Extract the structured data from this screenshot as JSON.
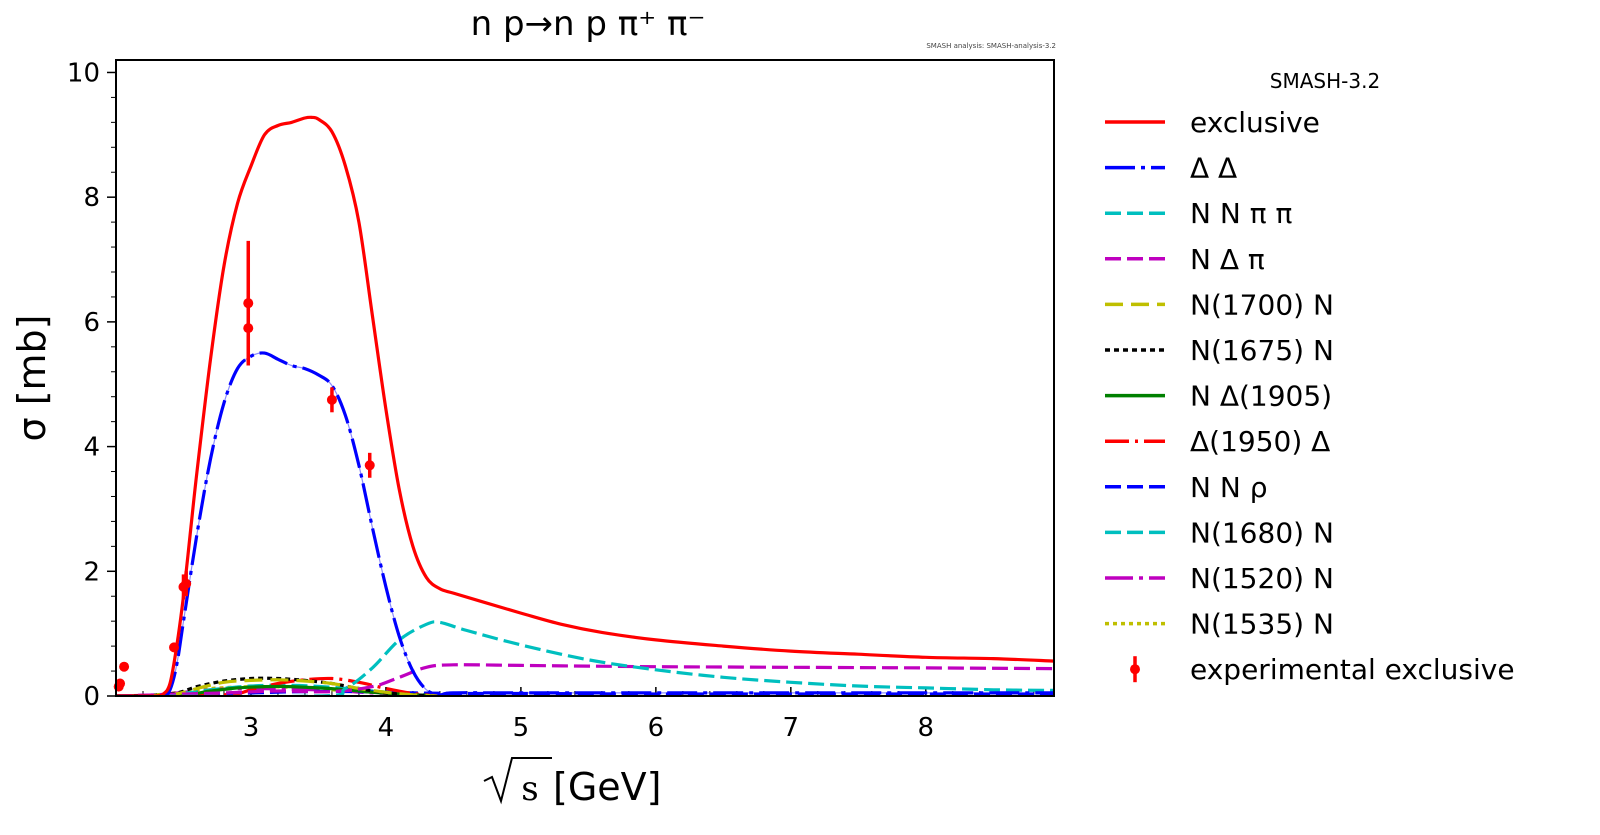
{
  "chart_data": {
    "type": "line",
    "title": "n p→n p π⁺ π⁻",
    "note": "SMASH analysis: SMASH-analysis-3.2",
    "xlabel": "[GeV]",
    "xlabel_symbol": "s",
    "ylabel": "σ [mb]",
    "xlim": [
      2.0,
      8.95
    ],
    "ylim": [
      0,
      10.2
    ],
    "x_ticks": [
      3,
      4,
      5,
      6,
      7,
      8
    ],
    "y_ticks": [
      0,
      2,
      4,
      6,
      8,
      10
    ],
    "legend_title": "SMASH-3.2",
    "legend_position": "outside-right",
    "series": [
      {
        "name": "exclusive",
        "color": "#ff0000",
        "dash": "",
        "width": 3.2,
        "x": [
          2.0,
          2.1,
          2.2,
          2.3,
          2.35,
          2.4,
          2.45,
          2.5,
          2.55,
          2.6,
          2.7,
          2.8,
          2.9,
          3.0,
          3.1,
          3.2,
          3.3,
          3.4,
          3.45,
          3.5,
          3.6,
          3.7,
          3.8,
          3.9,
          4.0,
          4.1,
          4.2,
          4.3,
          4.4,
          4.5,
          4.7,
          5.0,
          5.3,
          5.6,
          6.0,
          6.5,
          7.0,
          7.5,
          8.0,
          8.5,
          8.95
        ],
        "values": [
          0,
          0,
          0,
          0,
          0.03,
          0.2,
          0.8,
          1.6,
          2.6,
          3.6,
          5.4,
          6.9,
          7.9,
          8.5,
          9.0,
          9.15,
          9.2,
          9.27,
          9.28,
          9.25,
          9.05,
          8.5,
          7.6,
          6.1,
          4.6,
          3.3,
          2.4,
          1.9,
          1.72,
          1.65,
          1.52,
          1.33,
          1.15,
          1.02,
          0.9,
          0.8,
          0.72,
          0.67,
          0.62,
          0.6,
          0.56
        ]
      },
      {
        "name": "Δ Δ",
        "color": "#0000ff",
        "dash": "30 6 4 6",
        "width": 3.2,
        "x": [
          2.0,
          2.2,
          2.35,
          2.4,
          2.45,
          2.5,
          2.6,
          2.7,
          2.8,
          2.9,
          3.0,
          3.1,
          3.2,
          3.3,
          3.4,
          3.5,
          3.6,
          3.7,
          3.8,
          3.9,
          4.0,
          4.1,
          4.2,
          4.3,
          4.4,
          4.5,
          5.0,
          6.0,
          7.0,
          8.0,
          8.95
        ],
        "values": [
          0,
          0,
          0,
          0.1,
          0.5,
          1.2,
          2.6,
          3.8,
          4.7,
          5.25,
          5.45,
          5.5,
          5.4,
          5.3,
          5.25,
          5.15,
          4.98,
          4.5,
          3.7,
          2.7,
          1.75,
          0.95,
          0.4,
          0.1,
          0.02,
          0.05,
          0.05,
          0.05,
          0.05,
          0.05,
          0.05
        ]
      },
      {
        "name": "N N π π",
        "color": "#00bfbf",
        "dash": "16 6",
        "width": 3.2,
        "x": [
          2.0,
          3.5,
          3.7,
          3.9,
          4.1,
          4.3,
          4.4,
          4.6,
          5.0,
          5.5,
          6.0,
          6.5,
          7.0,
          7.5,
          8.0,
          8.5,
          8.95
        ],
        "values": [
          0,
          0,
          0.12,
          0.45,
          0.9,
          1.15,
          1.18,
          1.05,
          0.82,
          0.58,
          0.42,
          0.3,
          0.22,
          0.16,
          0.13,
          0.1,
          0.09
        ]
      },
      {
        "name": "N Δ π",
        "color": "#bf00bf",
        "dash": "16 6",
        "width": 3.2,
        "x": [
          2.0,
          2.8,
          3.2,
          3.6,
          3.9,
          4.1,
          4.3,
          4.5,
          5.0,
          5.5,
          6.0,
          7.0,
          8.0,
          8.95
        ],
        "values": [
          0,
          0.05,
          0.08,
          0.07,
          0.15,
          0.3,
          0.46,
          0.5,
          0.49,
          0.48,
          0.47,
          0.46,
          0.45,
          0.44
        ]
      },
      {
        "name": "N(1700) N",
        "color": "#bfbf00",
        "dash": "18 8",
        "width": 3.2,
        "x": [
          2.0,
          2.4,
          2.6,
          2.8,
          3.0,
          3.2,
          3.4,
          3.6,
          3.8,
          4.0,
          4.2,
          4.4
        ],
        "values": [
          0,
          0.02,
          0.12,
          0.22,
          0.25,
          0.26,
          0.24,
          0.2,
          0.12,
          0.06,
          0.02,
          0.0
        ]
      },
      {
        "name": "N(1675) N",
        "color": "#000000",
        "dash": "5 4",
        "width": 3.2,
        "x": [
          2.0,
          2.4,
          2.6,
          2.8,
          3.0,
          3.2,
          3.4,
          3.6,
          3.8,
          4.0,
          4.2,
          4.4
        ],
        "values": [
          0,
          0.03,
          0.15,
          0.24,
          0.28,
          0.28,
          0.25,
          0.2,
          0.12,
          0.05,
          0.02,
          0.0
        ]
      },
      {
        "name": "N Δ(1905)",
        "color": "#008000",
        "dash": "",
        "width": 3.2,
        "x": [
          2.0,
          2.5,
          2.7,
          2.9,
          3.1,
          3.3,
          3.5,
          3.7,
          3.9,
          4.1,
          4.3
        ],
        "values": [
          0,
          0.02,
          0.08,
          0.13,
          0.15,
          0.15,
          0.13,
          0.1,
          0.06,
          0.03,
          0.01
        ]
      },
      {
        "name": "Δ(1950) Δ",
        "color": "#ff0000",
        "dash": "24 6 3 6",
        "width": 3.2,
        "x": [
          2.0,
          2.8,
          3.0,
          3.2,
          3.4,
          3.6,
          3.8,
          4.0,
          4.2,
          4.4
        ],
        "values": [
          0,
          0.02,
          0.1,
          0.2,
          0.26,
          0.28,
          0.22,
          0.12,
          0.04,
          0.0
        ]
      },
      {
        "name": "N N ρ",
        "color": "#0000ff",
        "dash": "16 6",
        "width": 3.2,
        "x": [
          2.0,
          2.6,
          3.0,
          3.4,
          3.8,
          4.2,
          4.6,
          5.0,
          6.0,
          7.0,
          8.0,
          8.95
        ],
        "values": [
          0,
          0.02,
          0.05,
          0.07,
          0.07,
          0.05,
          0.04,
          0.04,
          0.03,
          0.03,
          0.03,
          0.03
        ]
      },
      {
        "name": "N(1680) N",
        "color": "#00bfbf",
        "dash": "16 6",
        "width": 3.2,
        "x": [
          2.0,
          2.4,
          2.7,
          3.0,
          3.3,
          3.6,
          3.9,
          4.2,
          4.5
        ],
        "values": [
          0,
          0.02,
          0.1,
          0.16,
          0.17,
          0.14,
          0.08,
          0.03,
          0.0
        ]
      },
      {
        "name": "N(1520) N",
        "color": "#bf00bf",
        "dash": "28 6 4 6",
        "width": 3.2,
        "x": [
          2.0,
          2.3,
          2.5,
          2.7,
          3.0,
          3.3,
          3.6,
          3.9,
          4.2,
          4.5
        ],
        "values": [
          0,
          0.02,
          0.06,
          0.1,
          0.12,
          0.11,
          0.09,
          0.05,
          0.02,
          0.0
        ]
      },
      {
        "name": "N(1535) N",
        "color": "#bfbf00",
        "dash": "4 4",
        "width": 3.2,
        "x": [
          2.0,
          2.3,
          2.5,
          2.7,
          3.0,
          3.3,
          3.6,
          3.9,
          4.2,
          4.5
        ],
        "values": [
          0,
          0.02,
          0.07,
          0.12,
          0.15,
          0.14,
          0.1,
          0.06,
          0.02,
          0.0
        ]
      }
    ],
    "experimental": {
      "name": "experimental exclusive",
      "color": "#ff0000",
      "points": [
        {
          "x": 2.02,
          "y": 0.15,
          "err": 0.05
        },
        {
          "x": 2.03,
          "y": 0.2,
          "err": 0.05
        },
        {
          "x": 2.06,
          "y": 0.47,
          "err": 0.05
        },
        {
          "x": 2.43,
          "y": 0.78,
          "err": 0.05
        },
        {
          "x": 2.5,
          "y": 1.75,
          "err": 0.2
        },
        {
          "x": 2.52,
          "y": 1.8,
          "err": 0.2
        },
        {
          "x": 2.98,
          "y": 6.3,
          "err": 1.0
        },
        {
          "x": 2.98,
          "y": 5.9,
          "err": 0.6
        },
        {
          "x": 3.6,
          "y": 4.75,
          "err": 0.2
        },
        {
          "x": 3.88,
          "y": 3.7,
          "err": 0.2
        }
      ]
    }
  }
}
